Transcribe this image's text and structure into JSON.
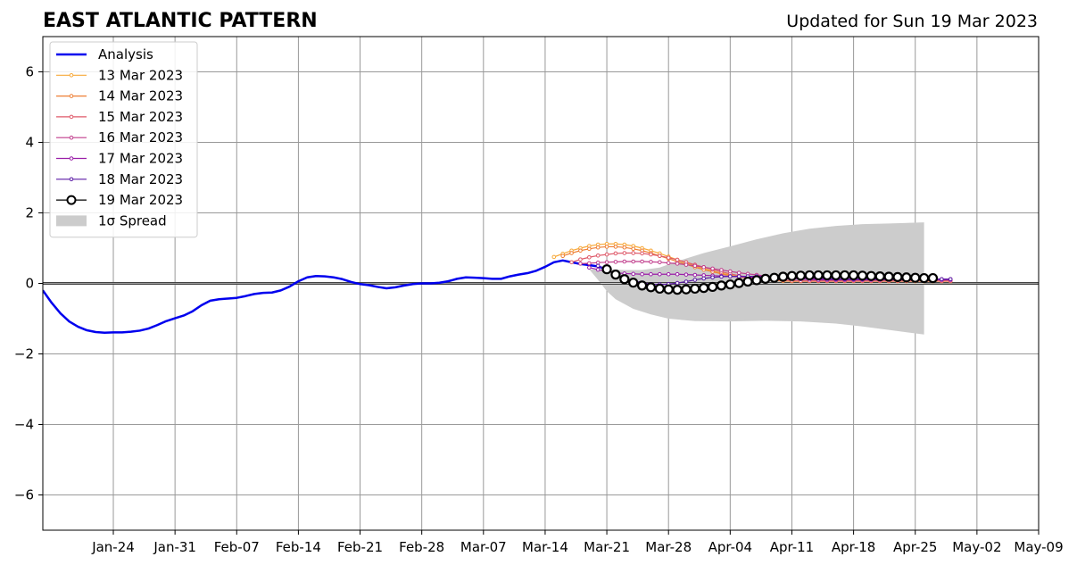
{
  "chart_data": {
    "type": "line",
    "title": "EAST ATLANTIC PATTERN",
    "subtitle": "Updated for Sun 19 Mar 2023",
    "xlabel": "",
    "ylabel": "",
    "x_range": [
      "2023-01-16",
      "2023-05-09"
    ],
    "ylim": [
      -7,
      7
    ],
    "grid": true,
    "legend_position": "upper-left",
    "x_ticks": [
      {
        "date": "2023-01-24",
        "label": "Jan-24"
      },
      {
        "date": "2023-01-31",
        "label": "Jan-31"
      },
      {
        "date": "2023-02-07",
        "label": "Feb-07"
      },
      {
        "date": "2023-02-14",
        "label": "Feb-14"
      },
      {
        "date": "2023-02-21",
        "label": "Feb-21"
      },
      {
        "date": "2023-02-28",
        "label": "Feb-28"
      },
      {
        "date": "2023-03-07",
        "label": "Mar-07"
      },
      {
        "date": "2023-03-14",
        "label": "Mar-14"
      },
      {
        "date": "2023-03-21",
        "label": "Mar-21"
      },
      {
        "date": "2023-03-28",
        "label": "Mar-28"
      },
      {
        "date": "2023-04-04",
        "label": "Apr-04"
      },
      {
        "date": "2023-04-11",
        "label": "Apr-11"
      },
      {
        "date": "2023-04-18",
        "label": "Apr-18"
      },
      {
        "date": "2023-04-25",
        "label": "Apr-25"
      },
      {
        "date": "2023-05-02",
        "label": "May-02"
      },
      {
        "date": "2023-05-09",
        "label": "May-09"
      }
    ],
    "y_ticks": [
      {
        "value": 6,
        "label": "6"
      },
      {
        "value": 4,
        "label": "4"
      },
      {
        "value": 2,
        "label": "2"
      },
      {
        "value": 0,
        "label": "0"
      },
      {
        "value": -2,
        "label": "−2"
      },
      {
        "value": -4,
        "label": "−4"
      },
      {
        "value": -6,
        "label": "−6"
      }
    ],
    "analysis": {
      "name": "Analysis",
      "color": "#0000ee",
      "points": [
        [
          "2023-01-16",
          -0.2
        ],
        [
          "2023-01-17",
          -0.55
        ],
        [
          "2023-01-18",
          -0.85
        ],
        [
          "2023-01-19",
          -1.08
        ],
        [
          "2023-01-20",
          -1.23
        ],
        [
          "2023-01-21",
          -1.33
        ],
        [
          "2023-01-22",
          -1.38
        ],
        [
          "2023-01-23",
          -1.4
        ],
        [
          "2023-01-24",
          -1.39
        ],
        [
          "2023-01-25",
          -1.39
        ],
        [
          "2023-01-26",
          -1.37
        ],
        [
          "2023-01-27",
          -1.34
        ],
        [
          "2023-01-28",
          -1.28
        ],
        [
          "2023-01-29",
          -1.18
        ],
        [
          "2023-01-30",
          -1.07
        ],
        [
          "2023-01-31",
          -0.99
        ],
        [
          "2023-02-01",
          -0.91
        ],
        [
          "2023-02-02",
          -0.79
        ],
        [
          "2023-02-03",
          -0.62
        ],
        [
          "2023-02-04",
          -0.49
        ],
        [
          "2023-02-05",
          -0.45
        ],
        [
          "2023-02-06",
          -0.43
        ],
        [
          "2023-02-07",
          -0.41
        ],
        [
          "2023-02-08",
          -0.36
        ],
        [
          "2023-02-09",
          -0.3
        ],
        [
          "2023-02-10",
          -0.27
        ],
        [
          "2023-02-11",
          -0.26
        ],
        [
          "2023-02-12",
          -0.2
        ],
        [
          "2023-02-13",
          -0.09
        ],
        [
          "2023-02-14",
          0.06
        ],
        [
          "2023-02-15",
          0.17
        ],
        [
          "2023-02-16",
          0.21
        ],
        [
          "2023-02-17",
          0.2
        ],
        [
          "2023-02-18",
          0.17
        ],
        [
          "2023-02-19",
          0.12
        ],
        [
          "2023-02-20",
          0.04
        ],
        [
          "2023-02-21",
          -0.02
        ],
        [
          "2023-02-22",
          -0.05
        ],
        [
          "2023-02-23",
          -0.1
        ],
        [
          "2023-02-24",
          -0.14
        ],
        [
          "2023-02-25",
          -0.11
        ],
        [
          "2023-02-26",
          -0.06
        ],
        [
          "2023-02-27",
          -0.02
        ],
        [
          "2023-02-28",
          0.0
        ],
        [
          "2023-03-01",
          0.0
        ],
        [
          "2023-03-02",
          0.02
        ],
        [
          "2023-03-03",
          0.06
        ],
        [
          "2023-03-04",
          0.13
        ],
        [
          "2023-03-05",
          0.17
        ],
        [
          "2023-03-06",
          0.16
        ],
        [
          "2023-03-07",
          0.15
        ],
        [
          "2023-03-08",
          0.13
        ],
        [
          "2023-03-09",
          0.13
        ],
        [
          "2023-03-10",
          0.2
        ],
        [
          "2023-03-11",
          0.25
        ],
        [
          "2023-03-12",
          0.29
        ],
        [
          "2023-03-13",
          0.36
        ],
        [
          "2023-03-14",
          0.47
        ],
        [
          "2023-03-15",
          0.6
        ],
        [
          "2023-03-16",
          0.65
        ],
        [
          "2023-03-17",
          0.6
        ],
        [
          "2023-03-18",
          0.55
        ],
        [
          "2023-03-19",
          0.52
        ],
        [
          "2023-03-20",
          0.48
        ],
        [
          "2023-03-21",
          0.4
        ]
      ]
    },
    "forecasts": [
      {
        "name": "13 Mar 2023",
        "color": "#f7a93a",
        "values": [
          0.75,
          0.84,
          0.93,
          1.0,
          1.06,
          1.1,
          1.12,
          1.12,
          1.1,
          1.06,
          1.0,
          0.93,
          0.85,
          0.76,
          0.67,
          0.58,
          0.5,
          0.42,
          0.35,
          0.29,
          0.24,
          0.19,
          0.15,
          0.12,
          0.1,
          0.08,
          0.07,
          0.06,
          0.06,
          0.06,
          0.06,
          0.06,
          0.06,
          0.06,
          0.06,
          0.06,
          0.06,
          0.06,
          0.06,
          0.06,
          0.06,
          0.06,
          0.06,
          0.06,
          0.06,
          0.06
        ]
      },
      {
        "name": "14 Mar 2023",
        "color": "#ee7f35",
        "values": [
          0.78,
          0.86,
          0.93,
          0.98,
          1.02,
          1.04,
          1.04,
          1.02,
          0.98,
          0.93,
          0.86,
          0.78,
          0.7,
          0.62,
          0.54,
          0.46,
          0.39,
          0.33,
          0.27,
          0.22,
          0.18,
          0.15,
          0.12,
          0.1,
          0.09,
          0.08,
          0.07,
          0.07,
          0.07,
          0.07,
          0.07,
          0.07,
          0.07,
          0.07,
          0.07,
          0.07,
          0.07,
          0.07,
          0.07,
          0.07,
          0.07,
          0.07,
          0.07,
          0.07,
          0.07
        ]
      },
      {
        "name": "15 Mar 2023",
        "color": "#df5a6a",
        "values": [
          0.6,
          0.68,
          0.74,
          0.79,
          0.82,
          0.85,
          0.86,
          0.86,
          0.85,
          0.82,
          0.78,
          0.73,
          0.67,
          0.6,
          0.53,
          0.46,
          0.39,
          0.33,
          0.27,
          0.22,
          0.18,
          0.15,
          0.12,
          0.1,
          0.09,
          0.08,
          0.07,
          0.07,
          0.07,
          0.07,
          0.07,
          0.07,
          0.07,
          0.07,
          0.07,
          0.07,
          0.07,
          0.07,
          0.07,
          0.07,
          0.07,
          0.07,
          0.07,
          0.07
        ]
      },
      {
        "name": "16 Mar 2023",
        "color": "#c03d8c",
        "values": [
          0.56,
          0.57,
          0.59,
          0.6,
          0.61,
          0.62,
          0.62,
          0.62,
          0.61,
          0.6,
          0.58,
          0.56,
          0.53,
          0.5,
          0.46,
          0.42,
          0.38,
          0.34,
          0.3,
          0.27,
          0.24,
          0.21,
          0.19,
          0.17,
          0.15,
          0.14,
          0.13,
          0.12,
          0.12,
          0.12,
          0.12,
          0.12,
          0.12,
          0.12,
          0.12,
          0.12,
          0.12,
          0.12,
          0.12,
          0.12,
          0.12,
          0.12,
          0.12
        ]
      },
      {
        "name": "17 Mar 2023",
        "color": "#9a1ea8",
        "values": [
          0.45,
          0.39,
          0.34,
          0.3,
          0.28,
          0.27,
          0.26,
          0.26,
          0.26,
          0.26,
          0.26,
          0.25,
          0.24,
          0.23,
          0.22,
          0.21,
          0.2,
          0.19,
          0.18,
          0.17,
          0.16,
          0.15,
          0.14,
          0.13,
          0.12,
          0.11,
          0.1,
          0.1,
          0.1,
          0.1,
          0.1,
          0.1,
          0.1,
          0.1,
          0.1,
          0.1,
          0.1,
          0.1,
          0.1,
          0.1,
          0.1,
          0.1
        ]
      },
      {
        "name": "18 Mar 2023",
        "color": "#5b1aa5",
        "values": [
          0.5,
          0.38,
          0.26,
          0.16,
          0.08,
          0.02,
          -0.02,
          -0.03,
          -0.02,
          0.01,
          0.05,
          0.1,
          0.14,
          0.17,
          0.19,
          0.2,
          0.2,
          0.2,
          0.2,
          0.2,
          0.19,
          0.18,
          0.17,
          0.16,
          0.15,
          0.14,
          0.13,
          0.12,
          0.12,
          0.12,
          0.12,
          0.12,
          0.12,
          0.12,
          0.12,
          0.12,
          0.12,
          0.12,
          0.12,
          0.12,
          0.12
        ]
      },
      {
        "name": "19 Mar 2023",
        "color": "#000000",
        "values": [
          0.4,
          0.25,
          0.12,
          0.02,
          -0.06,
          -0.11,
          -0.15,
          -0.17,
          -0.18,
          -0.17,
          -0.15,
          -0.13,
          -0.1,
          -0.06,
          -0.03,
          0.01,
          0.05,
          0.09,
          0.13,
          0.16,
          0.19,
          0.21,
          0.22,
          0.23,
          0.23,
          0.23,
          0.23,
          0.23,
          0.23,
          0.22,
          0.21,
          0.2,
          0.19,
          0.18,
          0.17,
          0.16,
          0.15,
          0.15
        ]
      }
    ],
    "spread": {
      "name": "1σ Spread",
      "color": "#cccccc",
      "upper": [
        [
          "2023-03-19",
          0.4
        ],
        [
          "2023-03-21",
          0.4
        ],
        [
          "2023-03-23",
          0.38
        ],
        [
          "2023-03-25",
          0.38
        ],
        [
          "2023-03-27",
          0.45
        ],
        [
          "2023-03-29",
          0.63
        ],
        [
          "2023-04-01",
          0.86
        ],
        [
          "2023-04-04",
          1.05
        ],
        [
          "2023-04-07",
          1.25
        ],
        [
          "2023-04-10",
          1.42
        ],
        [
          "2023-04-13",
          1.55
        ],
        [
          "2023-04-16",
          1.63
        ],
        [
          "2023-04-19",
          1.68
        ],
        [
          "2023-04-22",
          1.7
        ],
        [
          "2023-04-26",
          1.73
        ]
      ],
      "lower": [
        [
          "2023-03-19",
          0.4
        ],
        [
          "2023-03-20",
          0.1
        ],
        [
          "2023-03-21",
          -0.22
        ],
        [
          "2023-03-22",
          -0.45
        ],
        [
          "2023-03-24",
          -0.72
        ],
        [
          "2023-03-26",
          -0.88
        ],
        [
          "2023-03-28",
          -1.0
        ],
        [
          "2023-03-31",
          -1.07
        ],
        [
          "2023-04-04",
          -1.08
        ],
        [
          "2023-04-08",
          -1.06
        ],
        [
          "2023-04-12",
          -1.08
        ],
        [
          "2023-04-16",
          -1.14
        ],
        [
          "2023-04-19",
          -1.22
        ],
        [
          "2023-04-22",
          -1.32
        ],
        [
          "2023-04-26",
          -1.45
        ]
      ]
    }
  }
}
